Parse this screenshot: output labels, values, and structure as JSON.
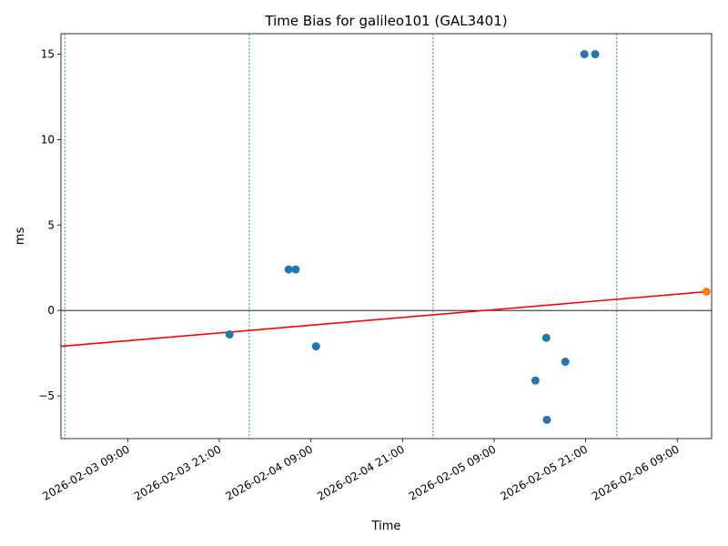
{
  "chart_data": {
    "type": "scatter",
    "title": "Time Bias for galileo101 (GAL3401)",
    "xlabel": "Time",
    "ylabel": "ms",
    "xlim": [
      "2026-02-03T00:15",
      "2026-02-06T13:30"
    ],
    "ylim": [
      -7.5,
      16.2
    ],
    "x_ticks": [
      "2026-02-03 09:00",
      "2026-02-03 21:00",
      "2026-02-04 09:00",
      "2026-02-04 21:00",
      "2026-02-05 09:00",
      "2026-02-05 21:00",
      "2026-02-06 09:00"
    ],
    "y_ticks": [
      "−5",
      "0",
      "5",
      "10",
      "15"
    ],
    "y_tick_values": [
      -5,
      0,
      5,
      10,
      15
    ],
    "grid": false,
    "series": [
      {
        "color": "#1f77b4",
        "points": [
          {
            "x": "2026-02-03T22:20",
            "y": -1.4
          },
          {
            "x": "2026-02-04T06:05",
            "y": 2.4
          },
          {
            "x": "2026-02-04T07:00",
            "y": 2.4
          },
          {
            "x": "2026-02-04T09:40",
            "y": -2.1
          },
          {
            "x": "2026-02-05T14:25",
            "y": -4.1
          },
          {
            "x": "2026-02-05T15:50",
            "y": -1.6
          },
          {
            "x": "2026-02-05T15:55",
            "y": -6.4
          },
          {
            "x": "2026-02-05T18:20",
            "y": -3.0
          },
          {
            "x": "2026-02-05T20:50",
            "y": 15.0
          },
          {
            "x": "2026-02-05T22:15",
            "y": 15.0
          }
        ]
      },
      {
        "color": "#ff7f0e",
        "points": [
          {
            "x": "2026-02-06T12:50",
            "y": 1.1
          }
        ]
      }
    ],
    "trend_line": {
      "color": "#ff0000",
      "start": {
        "x": "2026-02-03T00:15",
        "y": -2.1
      },
      "end": {
        "x": "2026-02-06T12:50",
        "y": 1.1
      }
    },
    "zero_line": {
      "y": 0,
      "color": "#000000"
    },
    "vertical_lines": {
      "color": "#1f77b4",
      "x": [
        "2026-02-03T00:45",
        "2026-02-04T00:55",
        "2026-02-05T01:00",
        "2026-02-06T01:05"
      ]
    }
  }
}
